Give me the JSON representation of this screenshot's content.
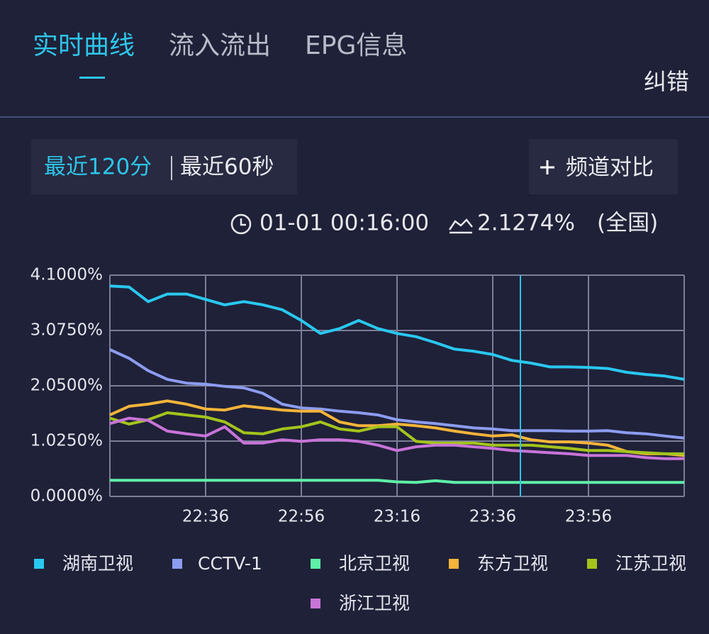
{
  "tabs": [
    "实时曲线",
    "流入流出",
    "EPG信息"
  ],
  "report": "纠错",
  "range_buttons": [
    "最近120分",
    "最近60秒"
  ],
  "compare_button": "频道对比",
  "info": {
    "time": "01-01 00:16:00",
    "value": "2.1274%",
    "scope": "(全国)"
  },
  "chart_data": {
    "type": "line",
    "categories": [
      null,
      null,
      null,
      null,
      null,
      "22:36",
      null,
      null,
      null,
      null,
      "22:56",
      null,
      null,
      null,
      null,
      "23:16",
      null,
      null,
      null,
      null,
      "23:36",
      null,
      null,
      null,
      null,
      "23:56",
      null,
      null,
      null,
      null,
      null
    ],
    "ylim": [
      0,
      4.1
    ],
    "yticks": [
      {
        "value": 0,
        "label": "0.0000%"
      },
      {
        "value": 1.025,
        "label": "1.0250%"
      },
      {
        "value": 2.05,
        "label": "2.0500%"
      },
      {
        "value": 3.075,
        "label": "3.0750%"
      },
      {
        "value": 4.1,
        "label": "4.1000%"
      }
    ],
    "grid": true,
    "series": [
      {
        "name": "湖南卫视",
        "color": "#29c8f0",
        "values": [
          3.9,
          3.88,
          3.61,
          3.75,
          3.75,
          3.65,
          3.55,
          3.61,
          3.55,
          3.46,
          3.26,
          3.02,
          3.11,
          3.26,
          3.11,
          3.02,
          2.96,
          2.85,
          2.73,
          2.69,
          2.63,
          2.52,
          2.47,
          2.4,
          2.4,
          2.39,
          2.37,
          2.3,
          2.26,
          2.23,
          2.17
        ]
      },
      {
        "name": "CCTV-1",
        "color": "#8c9cf0",
        "values": [
          2.72,
          2.56,
          2.33,
          2.17,
          2.1,
          2.08,
          2.04,
          2.01,
          1.91,
          1.71,
          1.64,
          1.62,
          1.58,
          1.55,
          1.51,
          1.42,
          1.38,
          1.35,
          1.31,
          1.27,
          1.25,
          1.22,
          1.22,
          1.22,
          1.21,
          1.21,
          1.22,
          1.18,
          1.16,
          1.12,
          1.08
        ]
      },
      {
        "name": "北京卫视",
        "color": "#5ef0a8",
        "values": [
          0.3,
          0.3,
          0.3,
          0.3,
          0.3,
          0.3,
          0.3,
          0.3,
          0.3,
          0.3,
          0.3,
          0.3,
          0.3,
          0.3,
          0.3,
          0.27,
          0.26,
          0.29,
          0.26,
          0.26,
          0.26,
          0.26,
          0.26,
          0.26,
          0.26,
          0.26,
          0.26,
          0.26,
          0.26,
          0.26,
          0.26
        ]
      },
      {
        "name": "东方卫视",
        "color": "#f5b43a",
        "values": [
          1.51,
          1.67,
          1.71,
          1.77,
          1.71,
          1.62,
          1.6,
          1.68,
          1.64,
          1.6,
          1.58,
          1.58,
          1.38,
          1.31,
          1.31,
          1.34,
          1.31,
          1.27,
          1.21,
          1.16,
          1.12,
          1.14,
          1.05,
          1.01,
          1.01,
          0.99,
          0.95,
          0.83,
          0.79,
          0.79,
          0.76
        ]
      },
      {
        "name": "江苏卫视",
        "color": "#a4c41c",
        "values": [
          1.45,
          1.34,
          1.42,
          1.55,
          1.51,
          1.47,
          1.38,
          1.18,
          1.16,
          1.25,
          1.29,
          1.38,
          1.25,
          1.21,
          1.29,
          1.29,
          1.02,
          0.99,
          0.99,
          0.99,
          0.95,
          0.95,
          0.95,
          0.92,
          0.89,
          0.85,
          0.85,
          0.83,
          0.81,
          0.79,
          0.79
        ]
      },
      {
        "name": "浙江卫视",
        "color": "#c874d8",
        "values": [
          1.35,
          1.45,
          1.41,
          1.21,
          1.16,
          1.12,
          1.29,
          0.99,
          0.99,
          1.05,
          1.02,
          1.05,
          1.05,
          1.02,
          0.95,
          0.85,
          0.92,
          0.95,
          0.95,
          0.92,
          0.89,
          0.85,
          0.83,
          0.81,
          0.79,
          0.76,
          0.76,
          0.76,
          0.72,
          0.7,
          0.7
        ]
      }
    ]
  }
}
